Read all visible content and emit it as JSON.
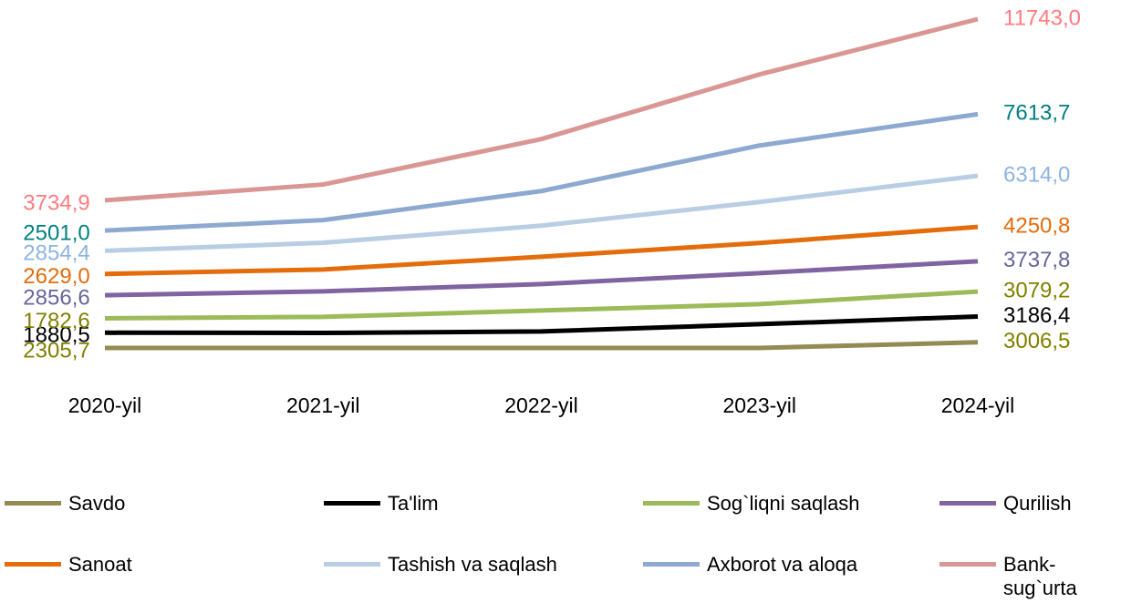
{
  "chart_data": {
    "type": "stacked-line",
    "categories": [
      "2020-yil",
      "2021-yil",
      "2022-yil",
      "2023-yil",
      "2024-yil"
    ],
    "series": [
      {
        "name": "Savdo",
        "color": "#948a54",
        "label_color": "#808000",
        "values": [
          2305.7,
          2310,
          2310,
          2310,
          3006.5
        ],
        "value_labels": [
          "2305,7",
          null,
          null,
          null,
          "3006,5"
        ]
      },
      {
        "name": "Ta'lim",
        "color": "#000000",
        "label_color": "#000000",
        "values": [
          1880.5,
          1850,
          2030,
          2930,
          3186.4
        ],
        "value_labels": [
          "1880,5",
          null,
          null,
          null,
          "3186,4"
        ]
      },
      {
        "name": "Sog`liqni saqlash",
        "color": "#9bbb59",
        "label_color": "#808000",
        "values": [
          1782.6,
          1990,
          2590,
          2480,
          3079.2
        ],
        "value_labels": [
          "1782,6",
          null,
          null,
          null,
          "3079,2"
        ]
      },
      {
        "name": "Qurilish",
        "color": "#8064a2",
        "label_color": "#66669a",
        "values": [
          2856.6,
          3150,
          3270,
          3830,
          3737.8
        ],
        "value_labels": [
          "2856,6",
          null,
          null,
          null,
          "3737,8"
        ]
      },
      {
        "name": "Sanoat",
        "color": "#e46c0a",
        "label_color": "#e46c0a",
        "values": [
          2629.0,
          2700,
          3380,
          3720,
          4250.8
        ],
        "value_labels": [
          "2629,0",
          null,
          null,
          null,
          "4250,8"
        ]
      },
      {
        "name": "Tashish va saqlash",
        "color": "#b9cde5",
        "label_color": "#8db4e2",
        "values": [
          2854.4,
          3300,
          3830,
          5070,
          6314.0
        ],
        "value_labels": [
          "2854,4",
          null,
          null,
          null,
          "6314,0"
        ]
      },
      {
        "name": "Axborot va aloqa",
        "color": "#8ea9d0",
        "label_color": "#00807f",
        "values": [
          2501.0,
          2800,
          4280,
          6980,
          7613.7
        ],
        "value_labels": [
          "2501,0",
          null,
          null,
          null,
          "7613,7"
        ]
      },
      {
        "name": "Bank-sug`urta",
        "color": "#d99694",
        "label_color": "#ff7c80",
        "values": [
          3734.9,
          4400,
          6420,
          8780,
          11743.0
        ],
        "value_labels": [
          "3734,9",
          null,
          null,
          null,
          "11743,0"
        ]
      }
    ],
    "legend": "bottom"
  }
}
